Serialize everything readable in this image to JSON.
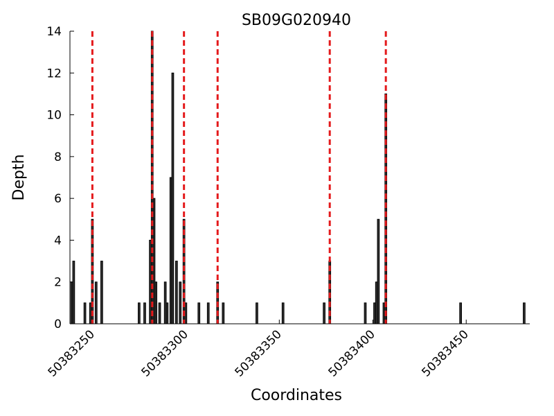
{
  "chart_data": {
    "type": "bar",
    "title": "SB09G020940",
    "x_label": "Coordinates",
    "y_label": "Depth",
    "x": [
      50383239,
      50383240,
      50383246,
      50383249,
      50383250,
      50383252,
      50383255,
      50383275,
      50383278,
      50383281,
      50383282,
      50383283,
      50383284,
      50383286,
      50383289,
      50383290,
      50383292,
      50383293,
      50383295,
      50383297,
      50383299,
      50383300,
      50383307,
      50383312,
      50383317,
      50383320,
      50383338,
      50383352,
      50383374,
      50383377,
      50383396,
      50383401,
      50383402,
      50383403,
      50383406,
      50383407,
      50383447,
      50383481
    ],
    "values": [
      2,
      3,
      1,
      1,
      5,
      2,
      3,
      1,
      1,
      4,
      14,
      6,
      2,
      1,
      2,
      1,
      7,
      12,
      3,
      2,
      5,
      1,
      1,
      1,
      2,
      1,
      1,
      1,
      1,
      3,
      1,
      1,
      2,
      5,
      1,
      11,
      1,
      1
    ],
    "color": "#333333",
    "markers": [
      50383250,
      50383282,
      50383299,
      50383317,
      50383377,
      50383407
    ],
    "marker_color": "#e41a1c",
    "xlim": [
      50383238,
      50383484
    ],
    "xticks": [
      50383250,
      50383300,
      50383350,
      50383400,
      50383450
    ],
    "ylim": [
      0,
      14
    ],
    "yticks": [
      0,
      2,
      4,
      6,
      8,
      10,
      12,
      14
    ]
  }
}
